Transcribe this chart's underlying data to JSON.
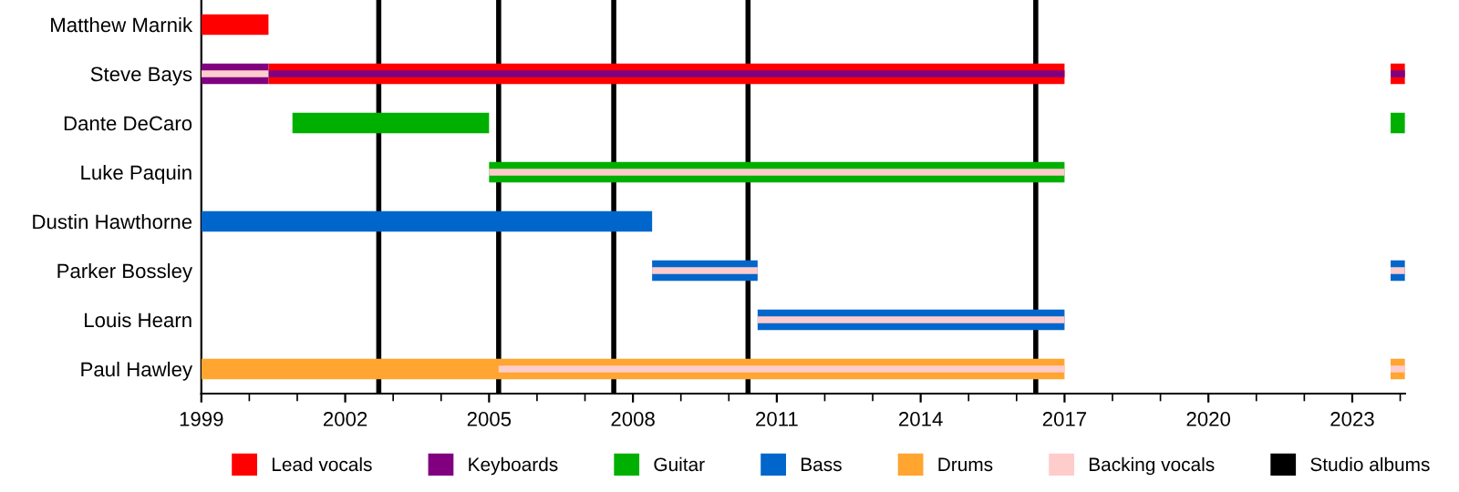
{
  "chart_data": {
    "type": "bar",
    "orientation": "horizontal",
    "categories": [
      "Matthew Marnik",
      "Steve Bays",
      "Dante DeCaro",
      "Luke Paquin",
      "Dustin Hawthorne",
      "Parker Bossley",
      "Louis Hearn",
      "Paul Hawley"
    ],
    "series": [
      {
        "name": "Lead vocals",
        "color": "#ff0000",
        "values": [
          1.4,
          16.6,
          null,
          null,
          null,
          null,
          null,
          null
        ],
        "base": [
          1999,
          2000.4,
          null,
          null,
          null,
          null,
          null,
          null
        ]
      },
      {
        "name": "Keyboards",
        "color": "#800080",
        "values": [
          null,
          1.4,
          null,
          null,
          null,
          null,
          null,
          null
        ],
        "base": [
          null,
          1999,
          null,
          null,
          null,
          null,
          null,
          null
        ]
      },
      {
        "name": "Guitar",
        "color": "#00b000",
        "values": [
          null,
          null,
          4.1,
          12.0,
          null,
          null,
          null,
          null
        ],
        "base": [
          null,
          null,
          2000.9,
          2005.0,
          null,
          null,
          null,
          null
        ]
      },
      {
        "name": "Bass",
        "color": "#0066cc",
        "values": [
          null,
          null,
          null,
          null,
          9.4,
          2.2,
          6.4,
          null
        ],
        "base": [
          null,
          null,
          null,
          null,
          1999,
          2008.4,
          2010.6,
          null
        ]
      },
      {
        "name": "Drums",
        "color": "#ffa530",
        "values": [
          null,
          null,
          null,
          null,
          null,
          null,
          null,
          18.0
        ],
        "base": [
          null,
          null,
          null,
          null,
          null,
          null,
          null,
          1999
        ]
      },
      {
        "color": "#800080",
        "values": [
          null,
          16.6,
          null,
          null,
          null,
          null,
          null,
          null
        ],
        "base": [
          null,
          2000.4,
          null,
          null,
          null,
          null,
          null,
          null
        ]
      },
      {
        "name": "Backing vocals",
        "color": "#ffcccc",
        "values": [
          null,
          1.4,
          null,
          12.0,
          null,
          2.2,
          6.4,
          11.8
        ],
        "base": [
          null,
          1999,
          null,
          2005.0,
          null,
          2008.4,
          2010.6,
          2005.2
        ]
      },
      {
        "colors": [
          null,
          "#ff0000",
          "#00b000",
          null,
          null,
          "#0066cc",
          null,
          "#ffa530"
        ],
        "values": [
          null,
          0.3,
          0.3,
          null,
          null,
          0.3,
          null,
          0.3
        ],
        "base": [
          null,
          2023.8,
          2023.8,
          null,
          null,
          2023.8,
          null,
          2023.8
        ]
      },
      {
        "colors": [
          null,
          "#800080",
          null,
          null,
          null,
          "#ffcccc",
          null,
          "#ffcccc"
        ],
        "values": [
          null,
          0.3,
          null,
          null,
          null,
          0.3,
          null,
          0.3
        ],
        "base": [
          null,
          2023.8,
          null,
          null,
          null,
          2023.8,
          null,
          2023.8
        ]
      }
    ],
    "ref_lines": [
      {
        "axis": "x",
        "value": 2002.7,
        "label": "Studio albums",
        "color": "#000000"
      },
      {
        "axis": "x",
        "value": 2005.2,
        "color": "#000000"
      },
      {
        "axis": "x",
        "value": 2007.6,
        "color": "#000000"
      },
      {
        "axis": "x",
        "value": 2010.4,
        "color": "#000000"
      },
      {
        "axis": "x",
        "value": 2016.4,
        "color": "#000000"
      }
    ],
    "xlim": [
      1999,
      2024.1
    ],
    "xticks": [
      1999,
      {
        "value": 2000,
        "label": null
      },
      {
        "value": 2001,
        "label": null
      },
      2002,
      {
        "value": 2003,
        "label": null
      },
      {
        "value": 2004,
        "label": null
      },
      2005,
      {
        "value": 2006,
        "label": null
      },
      {
        "value": 2007,
        "label": null
      },
      2008,
      {
        "value": 2009,
        "label": null
      },
      {
        "value": 2010,
        "label": null
      },
      2011,
      {
        "value": 2012,
        "label": null
      },
      {
        "value": 2013,
        "label": null
      },
      2014,
      {
        "value": 2015,
        "label": null
      },
      {
        "value": 2016,
        "label": null
      },
      2017,
      {
        "value": 2018,
        "label": null
      },
      {
        "value": 2019,
        "label": null
      },
      2020,
      {
        "value": 2021,
        "label": null
      },
      {
        "value": 2022,
        "label": null
      },
      2023,
      {
        "value": 2024,
        "label": null
      }
    ],
    "grid": false,
    "legend": "bottom"
  }
}
